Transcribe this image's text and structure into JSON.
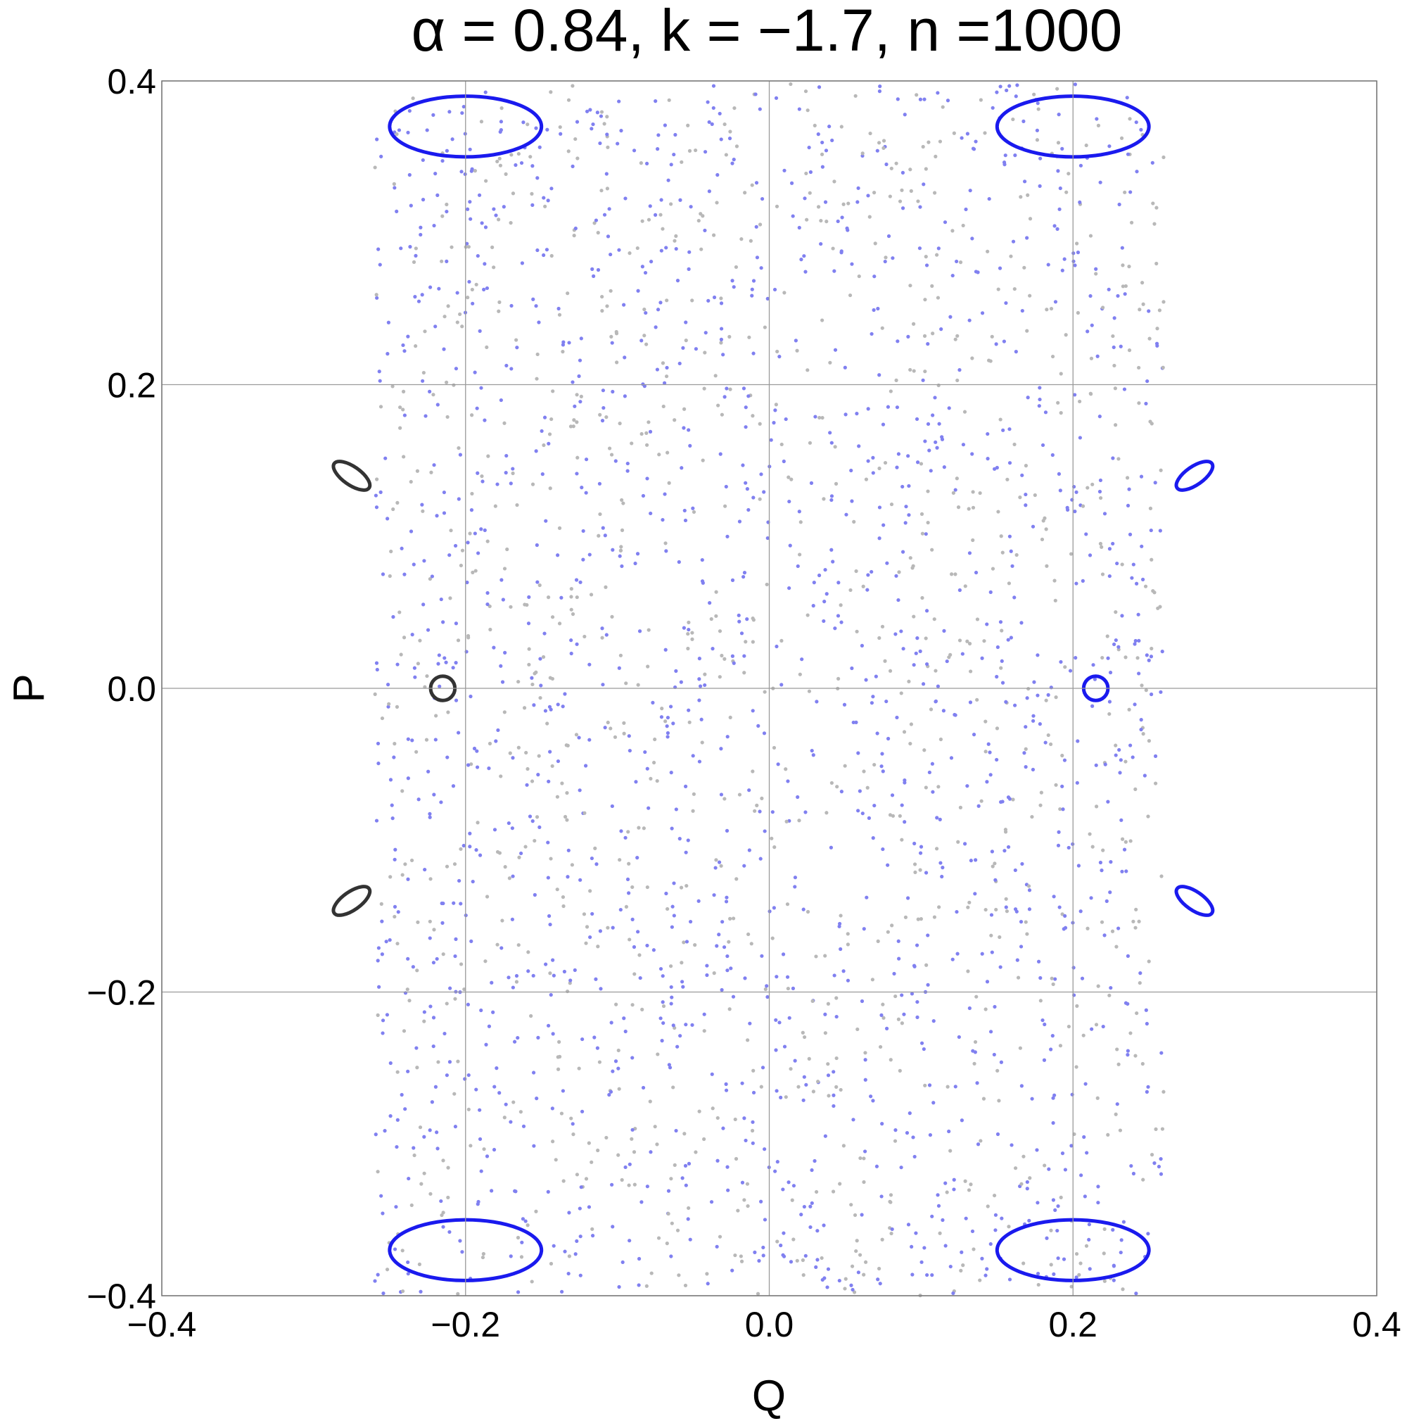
{
  "chart_data": {
    "type": "scatter",
    "title": "α = 0.84, k = −1.7, n =1000",
    "xlabel": "Q",
    "ylabel": "P",
    "xlim": [
      -0.4,
      0.4
    ],
    "ylim": [
      -0.4,
      0.4
    ],
    "grid": true,
    "x_ticks": [
      -0.4,
      -0.2,
      0.0,
      0.2,
      0.4
    ],
    "x_tick_labels": [
      "−0.4",
      "−0.2",
      "0.0",
      "0.2",
      "0.4"
    ],
    "y_ticks": [
      -0.4,
      -0.2,
      0.0,
      0.2,
      0.4
    ],
    "y_tick_labels": [
      "−0.4",
      "−0.2",
      "0.0",
      "0.2",
      "0.4"
    ],
    "colors": {
      "blue": "#1a1aee",
      "gray": "#a8a8a8",
      "dark": "#333333",
      "gridline": "#9a9a9a"
    },
    "series": [
      {
        "color": "blue",
        "kind": "elliptic-island",
        "center": [
          0.215,
          0.0
        ],
        "radius": [
          0.008,
          0.008
        ]
      },
      {
        "color": "dark",
        "kind": "elliptic-island",
        "center": [
          -0.215,
          0.0
        ],
        "radius": [
          0.008,
          0.008
        ]
      },
      {
        "color": "blue",
        "kind": "elliptic-island",
        "center": [
          0.28,
          0.14
        ],
        "radius": [
          0.014,
          0.006
        ],
        "tilt_deg": -35
      },
      {
        "color": "blue",
        "kind": "elliptic-island",
        "center": [
          0.28,
          -0.14
        ],
        "radius": [
          0.014,
          0.006
        ],
        "tilt_deg": 35
      },
      {
        "color": "dark",
        "kind": "elliptic-island",
        "center": [
          -0.275,
          0.14
        ],
        "radius": [
          0.014,
          0.006
        ],
        "tilt_deg": 35
      },
      {
        "color": "dark",
        "kind": "elliptic-island",
        "center": [
          -0.275,
          -0.14
        ],
        "radius": [
          0.014,
          0.006
        ],
        "tilt_deg": -35
      },
      {
        "color": "blue",
        "kind": "elliptic-island",
        "center": [
          -0.2,
          0.37
        ],
        "radius": [
          0.05,
          0.02
        ]
      },
      {
        "color": "blue",
        "kind": "elliptic-island",
        "center": [
          0.2,
          0.37
        ],
        "radius": [
          0.05,
          0.02
        ]
      },
      {
        "color": "blue",
        "kind": "elliptic-island",
        "center": [
          -0.2,
          -0.37
        ],
        "radius": [
          0.05,
          0.02
        ]
      },
      {
        "color": "blue",
        "kind": "elliptic-island",
        "center": [
          0.2,
          -0.37
        ],
        "radius": [
          0.05,
          0.02
        ]
      }
    ]
  }
}
